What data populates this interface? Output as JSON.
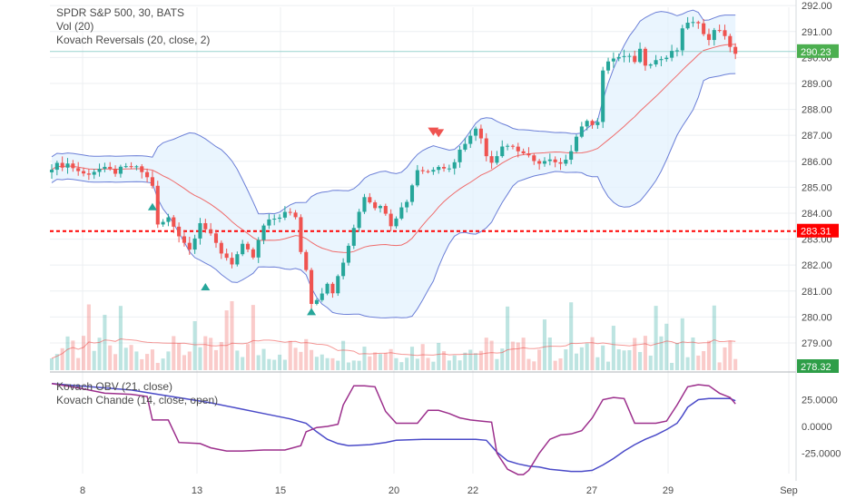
{
  "colors": {
    "up": "#26a69a",
    "down": "#ef5350",
    "bb_band": "#6b7fd7",
    "bb_fill": "#e3f2fd",
    "bb_basis": "#ef6c6c",
    "last_price_line": "#9ad4cf",
    "support_line": "#ff0000",
    "obv": "#4a4ac8",
    "chande": "#9c2f8c",
    "badge_last": "#4caf50",
    "badge_support": "#ff0000",
    "badge_vol": "#2e9e48",
    "grid": "#eceff2",
    "axis_text": "#4a4a4a"
  },
  "chart_data": [
    {
      "type": "line",
      "panel": "price",
      "title": "SPDR S&P 500, 30, BATS",
      "indicators": [
        "Vol (20)",
        "Kovach Reversals (20, close, 2)"
      ],
      "x_ticks": [
        "8",
        "13",
        "15",
        "20",
        "22",
        "27",
        "29",
        "Sep"
      ],
      "y_ticks": [
        279.0,
        280.0,
        281.0,
        282.0,
        283.0,
        284.0,
        285.0,
        286.0,
        287.0,
        288.0,
        289.0,
        290.0,
        291.0,
        292.0
      ],
      "ylim": [
        278.3,
        292.3
      ],
      "last_price": "290.23",
      "support_level": "283.31",
      "volume_badge": "278.32",
      "close_path": [
        [
          0,
          285.8
        ],
        [
          3,
          285.9
        ],
        [
          6,
          285.5
        ],
        [
          9,
          285.7
        ],
        [
          12,
          285.6
        ],
        [
          15,
          285.8
        ],
        [
          17,
          285.6
        ],
        [
          19,
          285.1
        ],
        [
          20,
          283.5
        ],
        [
          22,
          283.8
        ],
        [
          24,
          283.2
        ],
        [
          26,
          282.6
        ],
        [
          28,
          283.7
        ],
        [
          30,
          283.1
        ],
        [
          32,
          282.5
        ],
        [
          34,
          282.1
        ],
        [
          36,
          282.7
        ],
        [
          38,
          282.3
        ],
        [
          40,
          283.5
        ],
        [
          42,
          283.8
        ],
        [
          44,
          284.0
        ],
        [
          46,
          283.9
        ],
        [
          47,
          282.5
        ],
        [
          48,
          281.9
        ],
        [
          49,
          280.6
        ],
        [
          50,
          280.7
        ],
        [
          51,
          281.0
        ],
        [
          52,
          281.2
        ],
        [
          53,
          280.9
        ],
        [
          54,
          281.6
        ],
        [
          55,
          282.0
        ],
        [
          57,
          283.5
        ],
        [
          59,
          284.7
        ],
        [
          61,
          284.3
        ],
        [
          63,
          284.1
        ],
        [
          64,
          283.6
        ],
        [
          65,
          283.9
        ],
        [
          67,
          284.5
        ],
        [
          69,
          285.7
        ],
        [
          71,
          285.6
        ],
        [
          73,
          285.9
        ],
        [
          75,
          285.7
        ],
        [
          77,
          286.4
        ],
        [
          79,
          287.1
        ],
        [
          80,
          287.2
        ],
        [
          81,
          286.9
        ],
        [
          82,
          286.3
        ],
        [
          83,
          286.0
        ],
        [
          85,
          286.6
        ],
        [
          87,
          286.6
        ],
        [
          89,
          286.2
        ],
        [
          91,
          286.1
        ],
        [
          92,
          285.9
        ],
        [
          94,
          286.0
        ],
        [
          96,
          285.8
        ],
        [
          98,
          286.5
        ],
        [
          100,
          287.4
        ],
        [
          102,
          287.5
        ],
        [
          103,
          287.6
        ],
        [
          104,
          289.5
        ],
        [
          106,
          290.0
        ],
        [
          108,
          290.0
        ],
        [
          110,
          289.9
        ],
        [
          111,
          290.3
        ],
        [
          112,
          289.8
        ],
        [
          114,
          289.9
        ],
        [
          116,
          290.0
        ],
        [
          118,
          290.3
        ],
        [
          119,
          291.0
        ],
        [
          120,
          291.4
        ],
        [
          122,
          291.2
        ],
        [
          124,
          290.8
        ],
        [
          125,
          291.0
        ],
        [
          126,
          291.1
        ],
        [
          127,
          290.9
        ],
        [
          128,
          290.3
        ],
        [
          129,
          290.2
        ]
      ],
      "reversal_up": [
        19,
        29,
        49
      ],
      "reversal_down": [
        72,
        73
      ]
    },
    {
      "type": "line",
      "panel": "oscillator",
      "indicators": [
        "Kovach OBV (21, close)",
        "Kovach Chande (14, close, open)"
      ],
      "y_ticks": [
        "25.0000",
        "0.0000",
        "-25.0000"
      ],
      "ylim": [
        -45,
        42
      ],
      "series": [
        {
          "name": "Kovach OBV (21, close)",
          "values": [
            [
              0,
              40
            ],
            [
              5,
              38
            ],
            [
              10,
              36
            ],
            [
              15,
              34
            ],
            [
              20,
              30
            ],
            [
              25,
              26
            ],
            [
              30,
              22
            ],
            [
              35,
              17
            ],
            [
              40,
              12
            ],
            [
              45,
              7
            ],
            [
              48,
              3
            ],
            [
              50,
              -5
            ],
            [
              52,
              -12
            ],
            [
              54,
              -16
            ],
            [
              56,
              -18
            ],
            [
              60,
              -17
            ],
            [
              63,
              -15
            ],
            [
              65,
              -13
            ],
            [
              70,
              -12
            ],
            [
              75,
              -12
            ],
            [
              80,
              -12
            ],
            [
              82,
              -13
            ],
            [
              84,
              -24
            ],
            [
              86,
              -32
            ],
            [
              88,
              -35
            ],
            [
              90,
              -37
            ],
            [
              92,
              -38
            ],
            [
              94,
              -40
            ],
            [
              96,
              -41
            ],
            [
              98,
              -42
            ],
            [
              100,
              -42
            ],
            [
              102,
              -41
            ],
            [
              104,
              -36
            ],
            [
              106,
              -30
            ],
            [
              108,
              -23
            ],
            [
              110,
              -17
            ],
            [
              112,
              -12
            ],
            [
              114,
              -8
            ],
            [
              116,
              -3
            ],
            [
              118,
              3
            ],
            [
              119,
              10
            ],
            [
              120,
              18
            ],
            [
              122,
              25
            ],
            [
              124,
              26
            ],
            [
              126,
              26
            ],
            [
              128,
              26
            ],
            [
              129,
              24
            ]
          ]
        },
        {
          "name": "Kovach Chande (14, close, open)",
          "values": [
            [
              0,
              40
            ],
            [
              5,
              36
            ],
            [
              10,
              31
            ],
            [
              15,
              30
            ],
            [
              18,
              28
            ],
            [
              19,
              6
            ],
            [
              22,
              6
            ],
            [
              24,
              -15
            ],
            [
              28,
              -16
            ],
            [
              30,
              -20
            ],
            [
              33,
              -23
            ],
            [
              36,
              -23
            ],
            [
              40,
              -22
            ],
            [
              44,
              -22
            ],
            [
              47,
              -18
            ],
            [
              48,
              -5
            ],
            [
              50,
              -1
            ],
            [
              52,
              0
            ],
            [
              54,
              2
            ],
            [
              55,
              20
            ],
            [
              57,
              38
            ],
            [
              59,
              38
            ],
            [
              61,
              37
            ],
            [
              63,
              14
            ],
            [
              65,
              3
            ],
            [
              67,
              3
            ],
            [
              69,
              3
            ],
            [
              71,
              15
            ],
            [
              73,
              15
            ],
            [
              75,
              12
            ],
            [
              77,
              8
            ],
            [
              79,
              6
            ],
            [
              81,
              5
            ],
            [
              83,
              4
            ],
            [
              84,
              -25
            ],
            [
              86,
              -40
            ],
            [
              88,
              -45
            ],
            [
              89,
              -45
            ],
            [
              90,
              -41
            ],
            [
              92,
              -25
            ],
            [
              94,
              -12
            ],
            [
              96,
              -8
            ],
            [
              98,
              -7
            ],
            [
              100,
              -4
            ],
            [
              102,
              8
            ],
            [
              104,
              25
            ],
            [
              106,
              27
            ],
            [
              108,
              26
            ],
            [
              110,
              3
            ],
            [
              112,
              3
            ],
            [
              114,
              3
            ],
            [
              116,
              5
            ],
            [
              118,
              20
            ],
            [
              120,
              37
            ],
            [
              122,
              39
            ],
            [
              124,
              38
            ],
            [
              126,
              31
            ],
            [
              128,
              27
            ],
            [
              129,
              21
            ]
          ]
        }
      ]
    }
  ]
}
